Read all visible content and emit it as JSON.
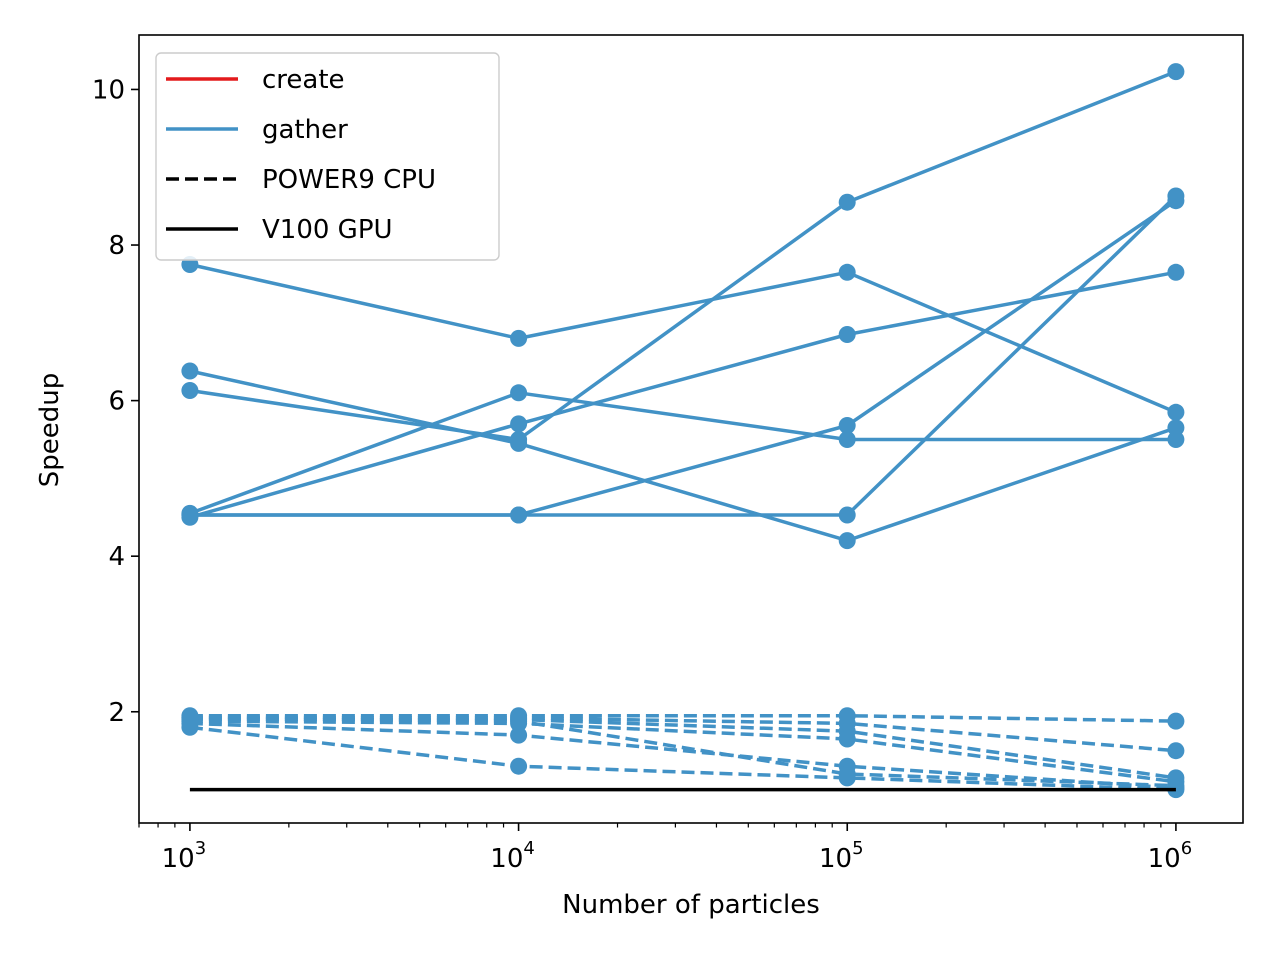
{
  "chart_data": {
    "type": "line",
    "title": "",
    "xlabel": "Number of particles",
    "ylabel": "Speedup",
    "xscale": "log",
    "xlim": [
      700,
      1600000
    ],
    "ylim": [
      0.57,
      10.7
    ],
    "x_ticks": [
      {
        "base": "10",
        "exp": "3",
        "value": 1000
      },
      {
        "base": "10",
        "exp": "4",
        "value": 10000
      },
      {
        "base": "10",
        "exp": "5",
        "value": 100000
      },
      {
        "base": "10",
        "exp": "6",
        "value": 1000000
      }
    ],
    "y_ticks": [
      "2",
      "4",
      "6",
      "8",
      "10"
    ],
    "grid": false,
    "legend_position": "top-left",
    "legend": [
      {
        "label": "create",
        "color": "#e31a1c",
        "dash": "solid"
      },
      {
        "label": "gather",
        "color": "#4292c6",
        "dash": "solid"
      },
      {
        "label": "POWER9 CPU",
        "color": "#000000",
        "dash": "dashed"
      },
      {
        "label": "V100 GPU",
        "color": "#000000",
        "dash": "solid"
      }
    ],
    "series": [
      {
        "group": "gather",
        "platform": "V100 GPU",
        "color": "#4292c6",
        "dash": "solid",
        "points": [
          [
            1000,
            7.75
          ],
          [
            10000,
            6.8
          ],
          [
            100000,
            7.65
          ],
          [
            1000000,
            5.85
          ]
        ]
      },
      {
        "group": "gather",
        "platform": "V100 GPU",
        "color": "#4292c6",
        "dash": "solid",
        "points": [
          [
            1000,
            6.38
          ],
          [
            10000,
            5.45
          ],
          [
            100000,
            4.2
          ],
          [
            1000000,
            5.65
          ]
        ]
      },
      {
        "group": "gather",
        "platform": "V100 GPU",
        "color": "#4292c6",
        "dash": "solid",
        "points": [
          [
            1000,
            6.13
          ],
          [
            10000,
            5.5
          ],
          [
            100000,
            8.55
          ],
          [
            1000000,
            10.23
          ]
        ]
      },
      {
        "group": "gather",
        "platform": "V100 GPU",
        "color": "#4292c6",
        "dash": "solid",
        "points": [
          [
            1000,
            4.55
          ],
          [
            10000,
            6.1
          ],
          [
            100000,
            5.5
          ],
          [
            1000000,
            5.5
          ]
        ]
      },
      {
        "group": "gather",
        "platform": "V100 GPU",
        "color": "#4292c6",
        "dash": "solid",
        "points": [
          [
            1000,
            4.5
          ],
          [
            10000,
            5.7
          ],
          [
            100000,
            6.85
          ],
          [
            1000000,
            7.65
          ]
        ]
      },
      {
        "group": "gather",
        "platform": "V100 GPU",
        "color": "#4292c6",
        "dash": "solid",
        "points": [
          [
            1000,
            4.53
          ],
          [
            10000,
            4.53
          ],
          [
            100000,
            5.68
          ],
          [
            1000000,
            8.57
          ]
        ]
      },
      {
        "group": "gather",
        "platform": "V100 GPU",
        "color": "#4292c6",
        "dash": "solid",
        "points": [
          [
            1000,
            4.53
          ],
          [
            10000,
            4.53
          ],
          [
            100000,
            4.53
          ],
          [
            1000000,
            8.63
          ]
        ]
      },
      {
        "group": "gather",
        "platform": "POWER9 CPU",
        "color": "#4292c6",
        "dash": "dashed",
        "points": [
          [
            1000,
            1.95
          ],
          [
            10000,
            1.95
          ],
          [
            100000,
            1.95
          ],
          [
            1000000,
            1.88
          ]
        ]
      },
      {
        "group": "gather",
        "platform": "POWER9 CPU",
        "color": "#4292c6",
        "dash": "dashed",
        "points": [
          [
            1000,
            1.93
          ],
          [
            10000,
            1.92
          ],
          [
            100000,
            1.85
          ],
          [
            1000000,
            1.5
          ]
        ]
      },
      {
        "group": "gather",
        "platform": "POWER9 CPU",
        "color": "#4292c6",
        "dash": "dashed",
        "points": [
          [
            1000,
            1.9
          ],
          [
            10000,
            1.9
          ],
          [
            100000,
            1.75
          ],
          [
            1000000,
            1.15
          ]
        ]
      },
      {
        "group": "gather",
        "platform": "POWER9 CPU",
        "color": "#4292c6",
        "dash": "dashed",
        "points": [
          [
            1000,
            1.88
          ],
          [
            10000,
            1.85
          ],
          [
            100000,
            1.65
          ],
          [
            1000000,
            1.1
          ]
        ]
      },
      {
        "group": "gather",
        "platform": "POWER9 CPU",
        "color": "#4292c6",
        "dash": "dashed",
        "points": [
          [
            1000,
            1.85
          ],
          [
            10000,
            1.7
          ],
          [
            100000,
            1.3
          ],
          [
            1000000,
            1.02
          ]
        ]
      },
      {
        "group": "gather",
        "platform": "POWER9 CPU",
        "color": "#4292c6",
        "dash": "dashed",
        "points": [
          [
            1000,
            1.8
          ],
          [
            10000,
            1.3
          ],
          [
            100000,
            1.15
          ],
          [
            1000000,
            1.0
          ]
        ]
      },
      {
        "group": "gather",
        "platform": "POWER9 CPU",
        "color": "#4292c6",
        "dash": "dashed",
        "points": [
          [
            1000,
            1.92
          ],
          [
            10000,
            1.88
          ],
          [
            100000,
            1.2
          ],
          [
            1000000,
            1.05
          ]
        ]
      },
      {
        "group": "baseline",
        "platform": "V100 GPU",
        "color": "#000000",
        "dash": "solid",
        "markers": false,
        "points": [
          [
            1000,
            1.0
          ],
          [
            1000000,
            1.0
          ]
        ]
      }
    ]
  }
}
